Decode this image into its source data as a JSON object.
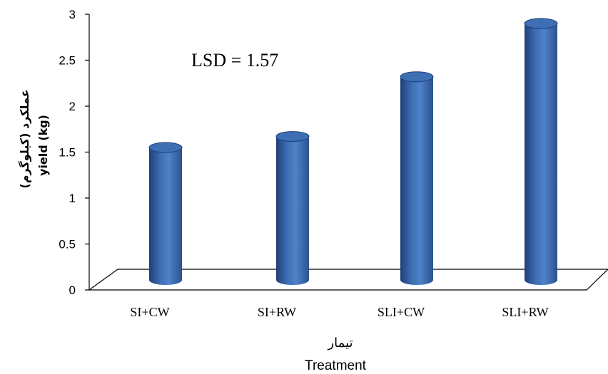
{
  "chart_data": {
    "type": "bar",
    "categories": [
      "SI+CW",
      "SI+RW",
      "SLI+CW",
      "SLI+RW"
    ],
    "values": [
      1.55,
      1.67,
      2.32,
      2.9
    ],
    "annotation": "LSD = 1.57",
    "ylabel_fa": "عملکرد (کیلوگرم)",
    "ylabel": "yield (kg)",
    "xlabel_fa": "تیمار",
    "xlabel": "Treatment",
    "ylim": [
      0,
      3
    ],
    "yticks": [
      "0",
      "0.5",
      "1",
      "1.5",
      "2",
      "2.5",
      "3"
    ],
    "grid": false,
    "bar_color": "#3E6FB5",
    "bar_dark": "#1F3F78",
    "bar_light": "#8DB3E6"
  }
}
